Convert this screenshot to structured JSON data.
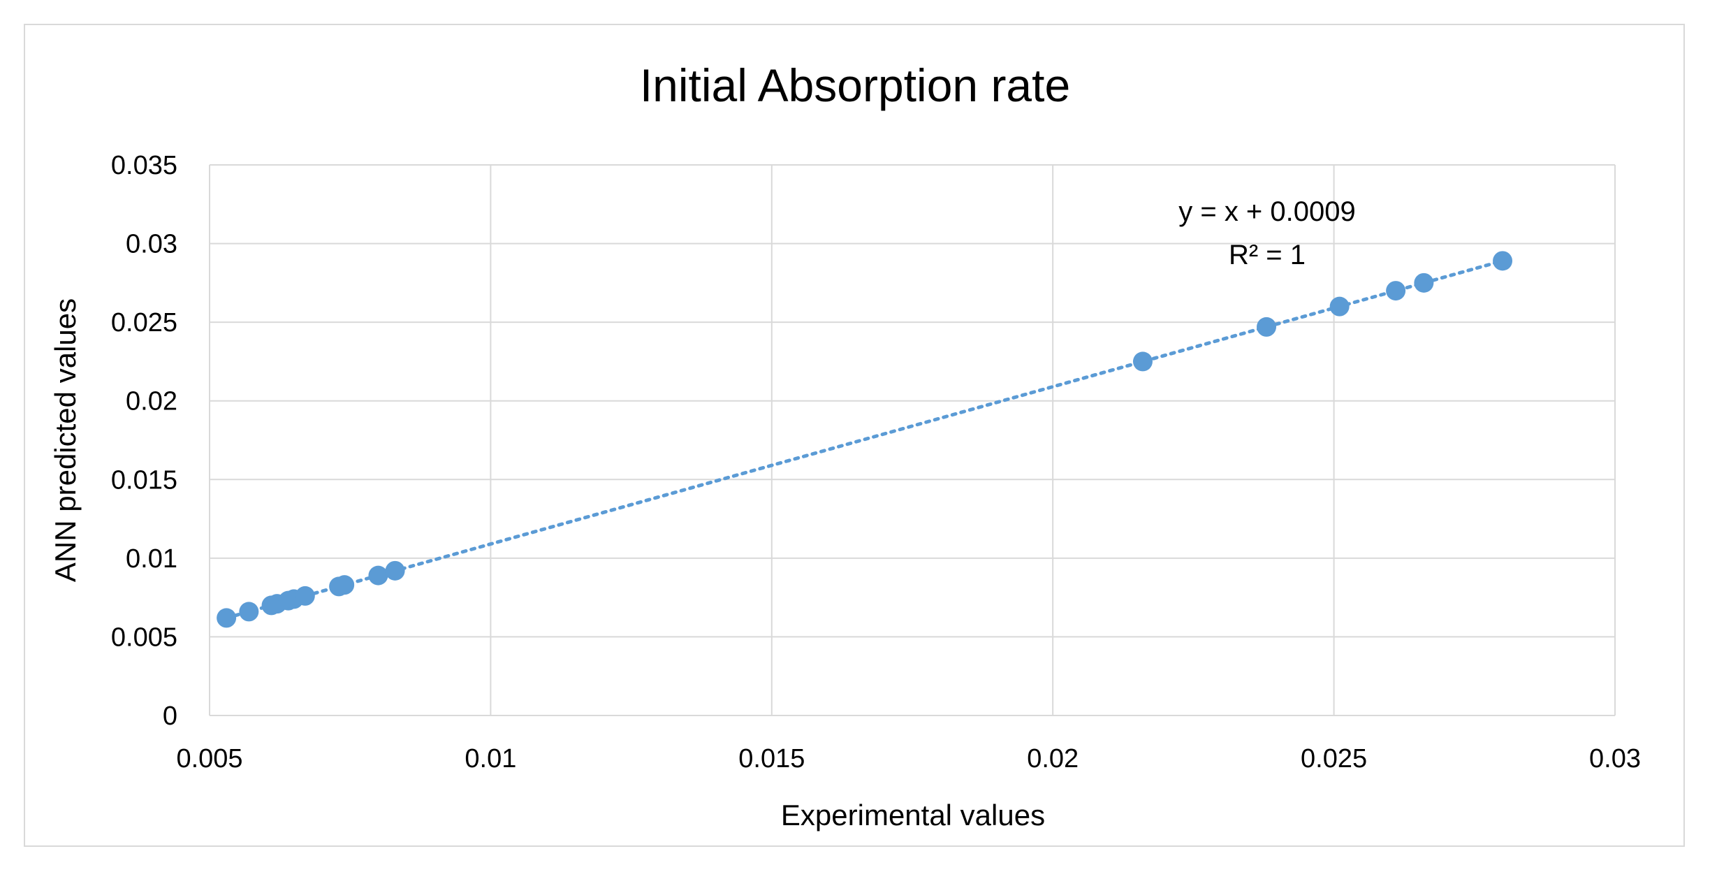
{
  "chart_data": {
    "type": "scatter",
    "title": "Initial Absorption rate",
    "xlabel": "Experimental values",
    "ylabel": "ANN predicted values",
    "xlim": [
      0.005,
      0.03
    ],
    "ylim": [
      0,
      0.035
    ],
    "x_ticks": [
      "0.005",
      "0.01",
      "0.015",
      "0.02",
      "0.025",
      "0.03"
    ],
    "y_ticks": [
      "0",
      "0.005",
      "0.01",
      "0.015",
      "0.02",
      "0.025",
      "0.03",
      "0.035"
    ],
    "grid": true,
    "series": [
      {
        "name": "Initial Absorption rate",
        "color": "#5b9bd5",
        "x": [
          0.0053,
          0.0057,
          0.0061,
          0.0062,
          0.0064,
          0.0065,
          0.0067,
          0.0073,
          0.0074,
          0.008,
          0.0083,
          0.0216,
          0.0238,
          0.0251,
          0.0261,
          0.0266,
          0.028
        ],
        "y": [
          0.0062,
          0.0066,
          0.007,
          0.0071,
          0.0073,
          0.0074,
          0.0076,
          0.0082,
          0.0083,
          0.0089,
          0.0092,
          0.0225,
          0.0247,
          0.026,
          0.027,
          0.0275,
          0.0289
        ]
      }
    ],
    "trendline": {
      "type": "linear",
      "style": "dotted",
      "color": "#5b9bd5",
      "slope": 1,
      "intercept": 0.0009,
      "x_range": [
        0.0053,
        0.028
      ],
      "equation": "y = x + 0.0009",
      "r_squared": "R² = 1"
    }
  }
}
